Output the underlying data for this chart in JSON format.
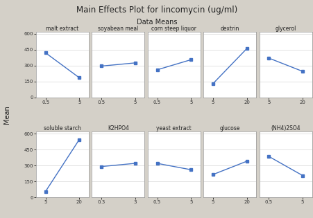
{
  "title": "Main Effects Plot for lincomycin (ug/ml)",
  "subtitle": "Data Means",
  "ylabel": "Mean",
  "background_color": "#d4d0c8",
  "panel_background": "#ffffff",
  "line_color": "#4472c4",
  "marker": "s",
  "markersize": 3,
  "linewidth": 1.0,
  "row1": [
    {
      "label": "malt extract",
      "x": [
        0.5,
        5.0
      ],
      "y": [
        420,
        185
      ]
    },
    {
      "label": "soyabean meal",
      "x": [
        0.5,
        5.0
      ],
      "y": [
        295,
        325
      ]
    },
    {
      "label": "corn steep liquor",
      "x": [
        0.5,
        5.0
      ],
      "y": [
        260,
        355
      ]
    },
    {
      "label": "dextrin",
      "x": [
        5,
        20
      ],
      "y": [
        130,
        460
      ]
    },
    {
      "label": "glycerol",
      "x": [
        5,
        20
      ],
      "y": [
        370,
        245
      ]
    }
  ],
  "row2": [
    {
      "label": "soluble starch",
      "x": [
        5,
        20
      ],
      "y": [
        55,
        545
      ]
    },
    {
      "label": "K2HPO4",
      "x": [
        0.3,
        3.0
      ],
      "y": [
        290,
        320
      ]
    },
    {
      "label": "yeast extract",
      "x": [
        0.5,
        5.0
      ],
      "y": [
        320,
        260
      ]
    },
    {
      "label": "glucose",
      "x": [
        5,
        20
      ],
      "y": [
        215,
        340
      ]
    },
    {
      "label": "(NH4)2SO4",
      "x": [
        0.5,
        5.0
      ],
      "y": [
        385,
        205
      ]
    }
  ],
  "ylim": [
    0,
    620
  ],
  "yticks": [
    0,
    150,
    300,
    450,
    600
  ]
}
